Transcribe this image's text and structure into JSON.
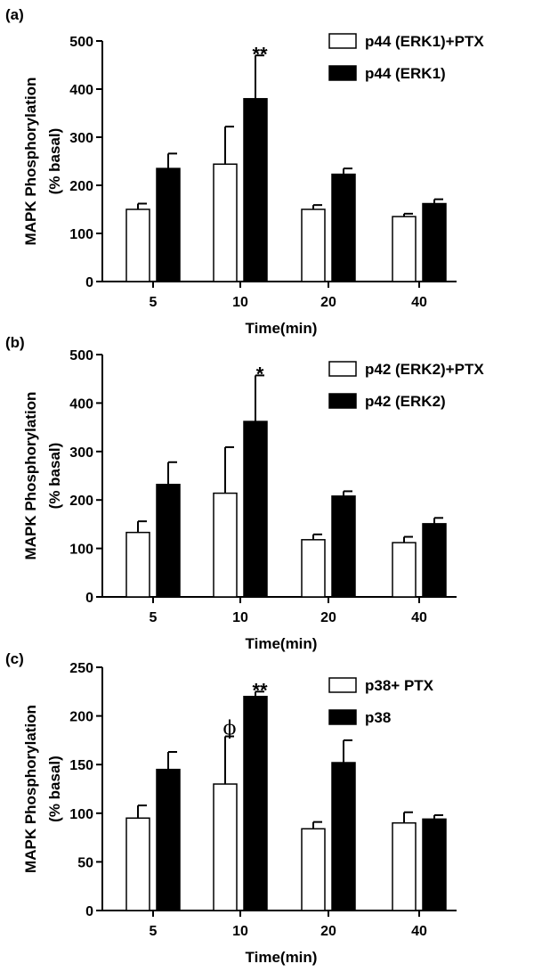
{
  "chart_data": [
    {
      "panel_label": "(a)",
      "type": "bar",
      "categories": [
        "5",
        "10",
        "20",
        "40"
      ],
      "xlabel": "Time(min)",
      "ylabel_lines": [
        "MAPK Phosphorylation",
        "(% basal)"
      ],
      "ylim": [
        0,
        500
      ],
      "yticks": [
        0,
        100,
        200,
        300,
        400,
        500
      ],
      "legend_position": "top-right",
      "series": [
        {
          "name": "p44 (ERK1)+PTX",
          "fill": "#ffffff",
          "values": [
            150,
            244,
            150,
            135
          ],
          "errors": [
            12,
            78,
            9,
            6
          ]
        },
        {
          "name": "p44 (ERK1)",
          "fill": "#000000",
          "values": [
            235,
            380,
            223,
            162
          ],
          "errors": [
            31,
            90,
            12,
            9
          ]
        }
      ],
      "annotations": [
        {
          "text": "**",
          "category": "10",
          "series": 1,
          "value": 469
        }
      ]
    },
    {
      "panel_label": "(b)",
      "type": "bar",
      "categories": [
        "5",
        "10",
        "20",
        "40"
      ],
      "xlabel": "Time(min)",
      "ylabel_lines": [
        "MAPK Phosphorylation",
        "(% basal)"
      ],
      "ylim": [
        0,
        500
      ],
      "yticks": [
        0,
        100,
        200,
        300,
        400,
        500
      ],
      "legend_position": "top-right",
      "series": [
        {
          "name": "p42 (ERK2)+PTX",
          "fill": "#ffffff",
          "values": [
            133,
            214,
            118,
            112
          ],
          "errors": [
            23,
            95,
            11,
            12
          ]
        },
        {
          "name": "p42 (ERK2)",
          "fill": "#000000",
          "values": [
            232,
            362,
            208,
            151
          ],
          "errors": [
            46,
            95,
            10,
            12
          ]
        }
      ],
      "annotations": [
        {
          "text": "*",
          "category": "10",
          "series": 1,
          "value": 457
        }
      ]
    },
    {
      "panel_label": "(c)",
      "type": "bar",
      "categories": [
        "5",
        "10",
        "20",
        "40"
      ],
      "xlabel": "Time(min)",
      "ylabel_lines": [
        "MAPK Phosphorylation",
        "(% basal)"
      ],
      "ylim": [
        0,
        250
      ],
      "yticks": [
        0,
        50,
        100,
        150,
        200,
        250
      ],
      "legend_position": "top-right",
      "series": [
        {
          "name": "p38+ PTX",
          "fill": "#ffffff",
          "values": [
            95,
            130,
            84,
            90
          ],
          "errors": [
            13,
            49,
            7,
            11
          ]
        },
        {
          "name": "p38",
          "fill": "#000000",
          "values": [
            145,
            220,
            152,
            94
          ],
          "errors": [
            18,
            5,
            23,
            4
          ]
        }
      ],
      "annotations": [
        {
          "text": "ϕ",
          "category": "10",
          "series": 0,
          "value": 179
        },
        {
          "text": "**",
          "category": "10",
          "series": 1,
          "value": 225
        }
      ]
    }
  ]
}
